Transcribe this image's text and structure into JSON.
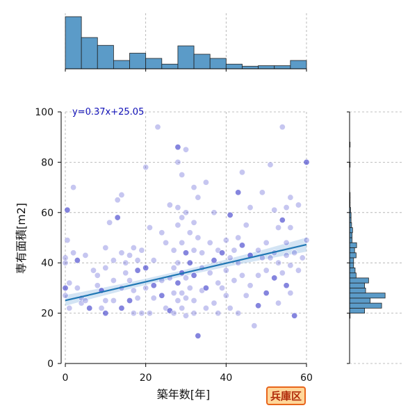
{
  "chart_data": {
    "type": "scatter",
    "subtype": "joint plot with marginal histograms and regression line",
    "xlabel": "築年数[年]",
    "ylabel": "専有面積[m2]",
    "xlim": [
      0,
      60
    ],
    "ylim": [
      0,
      100
    ],
    "xticks": [
      0,
      20,
      40,
      60
    ],
    "yticks": [
      0,
      20,
      40,
      60,
      80,
      100
    ],
    "grid": true,
    "annotation": "y=0.37x+25.05",
    "badge": "兵庫区",
    "regression": {
      "slope": 0.37,
      "intercept": 25.05,
      "confidence_band": true
    },
    "marginal_x_hist": {
      "bin_edges": [
        0,
        4,
        8,
        12,
        16,
        20,
        24,
        28,
        32,
        36,
        40,
        44,
        48,
        52,
        56,
        60
      ],
      "relative_heights": [
        1.0,
        0.6,
        0.45,
        0.16,
        0.3,
        0.2,
        0.09,
        0.44,
        0.28,
        0.2,
        0.09,
        0.05,
        0.06,
        0.06,
        0.16,
        0.03
      ]
    },
    "marginal_y_hist": {
      "bin_width": 2,
      "bins": [
        {
          "y": 18,
          "rel": 0.01
        },
        {
          "y": 20,
          "rel": 0.3
        },
        {
          "y": 22,
          "rel": 0.64
        },
        {
          "y": 24,
          "rel": 0.41
        },
        {
          "y": 26,
          "rel": 0.71
        },
        {
          "y": 28,
          "rel": 0.32
        },
        {
          "y": 30,
          "rel": 0.3
        },
        {
          "y": 32,
          "rel": 0.38
        },
        {
          "y": 34,
          "rel": 0.13
        },
        {
          "y": 36,
          "rel": 0.11
        },
        {
          "y": 38,
          "rel": 0.08
        },
        {
          "y": 40,
          "rel": 0.08
        },
        {
          "y": 42,
          "rel": 0.13
        },
        {
          "y": 44,
          "rel": 0.1
        },
        {
          "y": 46,
          "rel": 0.14
        },
        {
          "y": 48,
          "rel": 0.05
        },
        {
          "y": 50,
          "rel": 0.05
        },
        {
          "y": 52,
          "rel": 0.06
        },
        {
          "y": 54,
          "rel": 0.04
        },
        {
          "y": 56,
          "rel": 0.03
        },
        {
          "y": 58,
          "rel": 0.03
        },
        {
          "y": 60,
          "rel": 0.02
        },
        {
          "y": 62,
          "rel": 0.01
        },
        {
          "y": 64,
          "rel": 0.01
        },
        {
          "y": 66,
          "rel": 0.01
        },
        {
          "y": 78,
          "rel": 0.01
        },
        {
          "y": 86,
          "rel": 0.01
        }
      ]
    },
    "points": [
      [
        0.5,
        61
      ],
      [
        0.5,
        49
      ],
      [
        0,
        42
      ],
      [
        0,
        40
      ],
      [
        1,
        32
      ],
      [
        0,
        30
      ],
      [
        0,
        27
      ],
      [
        1,
        22
      ],
      [
        2,
        70
      ],
      [
        2,
        44
      ],
      [
        3,
        41
      ],
      [
        4,
        24
      ],
      [
        3,
        30
      ],
      [
        4,
        26
      ],
      [
        5,
        25
      ],
      [
        6,
        22
      ],
      [
        5,
        43
      ],
      [
        7,
        37
      ],
      [
        8,
        35
      ],
      [
        8,
        31
      ],
      [
        9,
        29
      ],
      [
        9,
        22
      ],
      [
        10,
        46
      ],
      [
        10,
        38
      ],
      [
        10,
        25
      ],
      [
        10,
        20
      ],
      [
        11,
        56
      ],
      [
        12,
        41
      ],
      [
        12,
        33
      ],
      [
        12,
        25
      ],
      [
        13,
        58
      ],
      [
        13,
        65
      ],
      [
        14,
        67
      ],
      [
        14,
        44
      ],
      [
        14,
        30
      ],
      [
        14,
        22
      ],
      [
        15,
        40
      ],
      [
        15,
        36
      ],
      [
        16,
        43
      ],
      [
        16,
        33
      ],
      [
        16,
        25
      ],
      [
        17,
        46
      ],
      [
        17,
        29
      ],
      [
        17,
        20
      ],
      [
        18,
        41
      ],
      [
        18,
        37
      ],
      [
        18,
        26
      ],
      [
        19,
        20
      ],
      [
        19,
        45
      ],
      [
        20,
        78
      ],
      [
        20,
        38
      ],
      [
        20,
        30
      ],
      [
        21,
        54
      ],
      [
        21,
        20
      ],
      [
        22,
        41
      ],
      [
        22,
        31
      ],
      [
        22,
        26
      ],
      [
        23,
        94
      ],
      [
        24,
        52
      ],
      [
        24,
        33
      ],
      [
        24,
        27
      ],
      [
        25,
        48
      ],
      [
        25,
        22
      ],
      [
        26,
        63
      ],
      [
        26,
        34
      ],
      [
        26,
        21
      ],
      [
        27,
        45
      ],
      [
        27,
        38
      ],
      [
        27,
        28
      ],
      [
        27,
        20
      ],
      [
        28,
        86
      ],
      [
        28,
        80
      ],
      [
        28,
        62
      ],
      [
        28,
        55
      ],
      [
        28,
        40
      ],
      [
        28,
        32
      ],
      [
        28,
        25
      ],
      [
        29,
        75
      ],
      [
        29,
        58
      ],
      [
        29,
        48
      ],
      [
        29,
        36
      ],
      [
        29,
        28
      ],
      [
        29,
        22
      ],
      [
        30,
        85
      ],
      [
        30,
        60
      ],
      [
        30,
        44
      ],
      [
        30,
        34
      ],
      [
        30,
        26
      ],
      [
        30,
        19
      ],
      [
        31,
        52
      ],
      [
        31,
        40
      ],
      [
        31,
        30
      ],
      [
        32,
        70
      ],
      [
        32,
        56
      ],
      [
        32,
        45
      ],
      [
        32,
        35
      ],
      [
        32,
        25
      ],
      [
        32,
        20
      ],
      [
        33,
        66
      ],
      [
        33,
        50
      ],
      [
        33,
        11
      ],
      [
        34,
        44
      ],
      [
        34,
        38
      ],
      [
        34,
        29
      ],
      [
        35,
        72
      ],
      [
        35,
        30
      ],
      [
        35,
        22
      ],
      [
        36,
        48
      ],
      [
        36,
        36
      ],
      [
        37,
        60
      ],
      [
        37,
        41
      ],
      [
        37,
        24
      ],
      [
        38,
        45
      ],
      [
        38,
        32
      ],
      [
        38,
        20
      ],
      [
        39,
        44
      ],
      [
        39,
        30
      ],
      [
        40,
        49
      ],
      [
        40,
        37
      ],
      [
        40,
        27
      ],
      [
        41,
        59
      ],
      [
        41,
        42
      ],
      [
        41,
        22
      ],
      [
        42,
        45
      ],
      [
        42,
        33
      ],
      [
        43,
        68
      ],
      [
        43,
        50
      ],
      [
        43,
        40
      ],
      [
        43,
        20
      ],
      [
        44,
        76
      ],
      [
        44,
        47
      ],
      [
        44,
        35
      ],
      [
        45,
        55
      ],
      [
        45,
        27
      ],
      [
        46,
        62
      ],
      [
        46,
        43
      ],
      [
        46,
        31
      ],
      [
        47,
        15
      ],
      [
        48,
        45
      ],
      [
        48,
        35
      ],
      [
        48,
        23
      ],
      [
        49,
        68
      ],
      [
        49,
        42
      ],
      [
        50,
        48
      ],
      [
        50,
        37
      ],
      [
        50,
        28
      ],
      [
        51,
        79
      ],
      [
        51,
        42
      ],
      [
        52,
        61
      ],
      [
        52,
        44
      ],
      [
        52,
        34
      ],
      [
        53,
        54
      ],
      [
        53,
        40
      ],
      [
        53,
        24
      ],
      [
        54,
        94
      ],
      [
        54,
        57
      ],
      [
        54,
        36
      ],
      [
        55,
        62
      ],
      [
        55,
        48
      ],
      [
        55,
        43
      ],
      [
        55,
        31
      ],
      [
        56,
        66
      ],
      [
        56,
        54
      ],
      [
        56,
        39
      ],
      [
        56,
        28
      ],
      [
        57,
        19
      ],
      [
        57,
        44
      ],
      [
        58,
        63
      ],
      [
        58,
        37
      ],
      [
        59,
        42
      ],
      [
        60,
        80
      ],
      [
        60,
        49
      ]
    ]
  }
}
